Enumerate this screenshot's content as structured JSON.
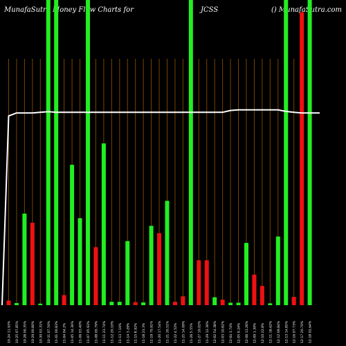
{
  "header": {
    "left": "MunafaSutra Money Flow Charts for",
    "middle": "JCSS",
    "right": "() MunafaSutra.com"
  },
  "chart_data": {
    "type": "bar",
    "title": "MunafaSutra Money Flow Charts for JCSS",
    "colors": {
      "up": "#22ee22",
      "down": "#ee1111",
      "grid": "#7a4400",
      "line": "#ffffff",
      "background": "#000000"
    },
    "ylim": [
      0,
      100
    ],
    "grid": "vertical",
    "legend": "none",
    "bars": [
      {
        "label": "10-24 11.93%",
        "value": 1.5,
        "dir": "down"
      },
      {
        "label": "10-25 07.85%",
        "value": 0.7,
        "dir": "up"
      },
      {
        "label": "10-28 00.35%",
        "value": 30,
        "dir": "up"
      },
      {
        "label": "10-29 00.80%",
        "value": 27,
        "dir": "down"
      },
      {
        "label": "10-30 03.31%",
        "value": 0.5,
        "dir": "up"
      },
      {
        "label": "10-31 07.50%",
        "value": 100,
        "dir": "up"
      },
      {
        "label": "11-01 00.83%",
        "value": 100,
        "dir": "up"
      },
      {
        "label": "11-04 04.2%",
        "value": 3.3,
        "dir": "down"
      },
      {
        "label": "11-05 14.36%",
        "value": 46,
        "dir": "up"
      },
      {
        "label": "11-06 03.40%",
        "value": 28.5,
        "dir": "up"
      },
      {
        "label": "11-07 05.93%",
        "value": 100,
        "dir": "up"
      },
      {
        "label": "11-08 00.79%",
        "value": 19,
        "dir": "down"
      },
      {
        "label": "11-11 23.74%",
        "value": 53,
        "dir": "up"
      },
      {
        "label": "11-12 20.10%",
        "value": 1.1,
        "dir": "up"
      },
      {
        "label": "11-13 7.16%",
        "value": 1.1,
        "dir": "up"
      },
      {
        "label": "11-14 3.29%",
        "value": 21,
        "dir": "up"
      },
      {
        "label": "11-15 8.92%",
        "value": 1,
        "dir": "down"
      },
      {
        "label": "11-18 23.3%",
        "value": 0.9,
        "dir": "up"
      },
      {
        "label": "11-19 70.91%",
        "value": 26,
        "dir": "up"
      },
      {
        "label": "11-20 17.54%",
        "value": 23.6,
        "dir": "down"
      },
      {
        "label": "11-21 30.51%",
        "value": 34.2,
        "dir": "up"
      },
      {
        "label": "11-22 4.52%",
        "value": 1.1,
        "dir": "down"
      },
      {
        "label": "11-25 14.09%",
        "value": 2.9,
        "dir": "down"
      },
      {
        "label": "11-26 5.55%",
        "value": 100,
        "dir": "up"
      },
      {
        "label": "11-27 19.02%",
        "value": 14.7,
        "dir": "down"
      },
      {
        "label": "11-29 12.36%",
        "value": 14.7,
        "dir": "down"
      },
      {
        "label": "12-02 54.38%",
        "value": 2.6,
        "dir": "up"
      },
      {
        "label": "12-03 10.82%",
        "value": 1.8,
        "dir": "down"
      },
      {
        "label": "12-04 3.74%",
        "value": 0.8,
        "dir": "up"
      },
      {
        "label": "12-05 9.24%",
        "value": 0.8,
        "dir": "up"
      },
      {
        "label": "12-06 13.26%",
        "value": 20.4,
        "dir": "up"
      },
      {
        "label": "12-09 1.30%",
        "value": 10,
        "dir": "down"
      },
      {
        "label": "12-10 22.8%",
        "value": 6.3,
        "dir": "down"
      },
      {
        "label": "12-11 18.62%",
        "value": 0.6,
        "dir": "up"
      },
      {
        "label": "12-12 09.84%",
        "value": 22.5,
        "dir": "up"
      },
      {
        "label": "12-13 14.85%",
        "value": 100,
        "dir": "up"
      },
      {
        "label": "12-16 07.73%",
        "value": 2.7,
        "dir": "down"
      },
      {
        "label": "12-17 20.70%",
        "value": 96,
        "dir": "down"
      },
      {
        "label": "12-18 02.64%",
        "value": 100,
        "dir": "up"
      }
    ],
    "line": {
      "name": "",
      "values": [
        62,
        63,
        63,
        63,
        63.2,
        63.4,
        63.2,
        63.2,
        63.2,
        63.2,
        63.2,
        63.2,
        63.2,
        63.2,
        63.2,
        63.2,
        63.2,
        63.2,
        63.2,
        63.2,
        63.2,
        63.2,
        63.2,
        63.2,
        63.2,
        63.2,
        63.2,
        63.2,
        63.8,
        64,
        64,
        64,
        64,
        64,
        64,
        63.5,
        63.2,
        63,
        63
      ],
      "start_value": 0
    }
  }
}
